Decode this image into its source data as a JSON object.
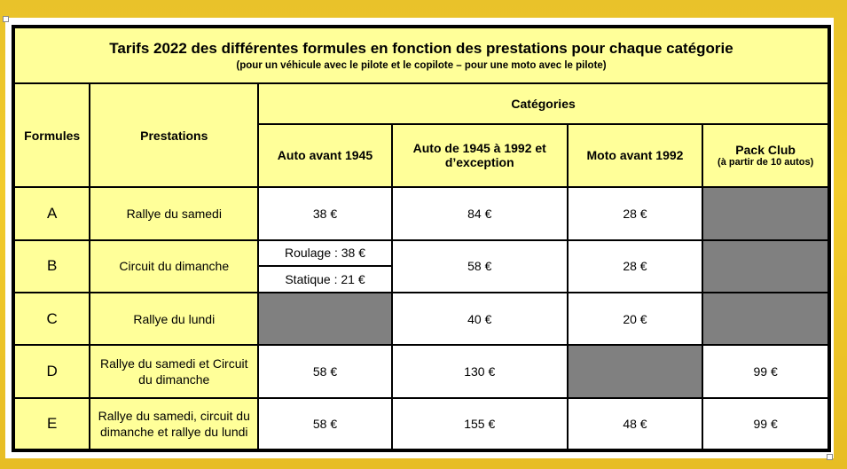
{
  "table": {
    "title": "Tarifs 2022 des différentes formules en fonction des prestations pour chaque catégorie",
    "subtitle": "(pour un véhicule avec le pilote et le copilote – pour une moto avec le pilote)",
    "headers": {
      "formules": "Formules",
      "prestations": "Prestations",
      "categories": "Catégories",
      "auto_avant_1945": "Auto avant 1945",
      "auto_1945_1992": "Auto de 1945 à 1992 et d’exception",
      "moto_avant_1992": "Moto avant 1992",
      "pack_club": "Pack Club",
      "pack_club_note": "(à partir de 10 autos)"
    },
    "rows": [
      {
        "formule": "A",
        "prestation": "Rallye du samedi",
        "auto_avant_1945": "38 €",
        "auto_1945_1992": "84 €",
        "moto": "28 €",
        "pack": ""
      },
      {
        "formule": "B",
        "prestation": "Circuit du dimanche",
        "auto_avant_1945_roulage": "Roulage : 38 €",
        "auto_avant_1945_statique": "Statique : 21 €",
        "auto_1945_1992": "58 €",
        "moto": "28 €",
        "pack": ""
      },
      {
        "formule": "C",
        "prestation": "Rallye du lundi",
        "auto_avant_1945": "",
        "auto_1945_1992": "40 €",
        "moto": "20 €",
        "pack": ""
      },
      {
        "formule": "D",
        "prestation": "Rallye du samedi et Circuit du dimanche",
        "auto_avant_1945": "58 €",
        "auto_1945_1992": "130 €",
        "moto": "",
        "pack": "99 €"
      },
      {
        "formule": "E",
        "prestation": "Rallye du samedi, circuit du dimanche et rallye du lundi",
        "auto_avant_1945": "58 €",
        "auto_1945_1992": "155 €",
        "moto": "48 €",
        "pack": "99 €"
      }
    ]
  },
  "colors": {
    "header_fill": "#ffff99",
    "unavailable_fill": "#808080",
    "background": "#f2cb2b"
  }
}
